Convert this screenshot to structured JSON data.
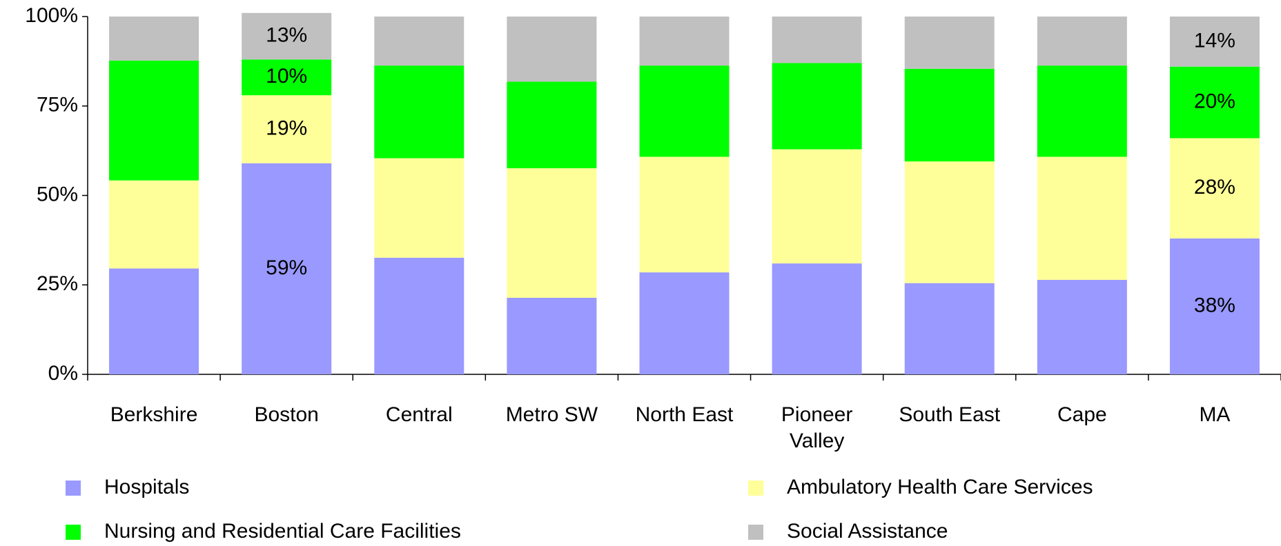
{
  "chart_data": {
    "type": "stacked_bar",
    "categories": [
      "Berkshire",
      "Boston",
      "Central",
      "Metro SW",
      "North East",
      "Pioneer Valley",
      "South East",
      "Cape",
      "MA"
    ],
    "series": [
      {
        "name": "Hospitals",
        "color": "#9999ff",
        "values": [
          29.6,
          59,
          32.6,
          21.4,
          28.5,
          31.0,
          25.5,
          26.4,
          38
        ],
        "value_labels": [
          null,
          "59%",
          null,
          null,
          null,
          null,
          null,
          null,
          "38%"
        ]
      },
      {
        "name": "Ambulatory Health Care Services",
        "color": "#ffff99",
        "values": [
          24.6,
          19,
          27.8,
          36.2,
          32.3,
          31.9,
          34.0,
          34.4,
          28
        ],
        "value_labels": [
          null,
          "19%",
          null,
          null,
          null,
          null,
          null,
          null,
          "28%"
        ]
      },
      {
        "name": "Nursing and Residential Care Facilities",
        "color": "#00ff00",
        "values": [
          33.5,
          10,
          25.9,
          24.2,
          25.5,
          24.1,
          25.9,
          25.5,
          20
        ],
        "value_labels": [
          null,
          "10%",
          null,
          null,
          null,
          null,
          null,
          null,
          "20%"
        ]
      },
      {
        "name": "Social Assistance",
        "color": "#c0c0c0",
        "values": [
          12.3,
          13,
          13.7,
          18.2,
          13.7,
          13.0,
          14.6,
          13.7,
          14
        ],
        "value_labels": [
          null,
          "13%",
          null,
          null,
          null,
          null,
          null,
          null,
          "14%"
        ]
      }
    ],
    "ylim": [
      0,
      100
    ],
    "yticks": [
      {
        "value": 0,
        "label": "0%"
      },
      {
        "value": 25,
        "label": "25%"
      },
      {
        "value": 50,
        "label": "50%"
      },
      {
        "value": 75,
        "label": "75%"
      },
      {
        "value": 100,
        "label": "100%"
      }
    ],
    "grid": false
  }
}
